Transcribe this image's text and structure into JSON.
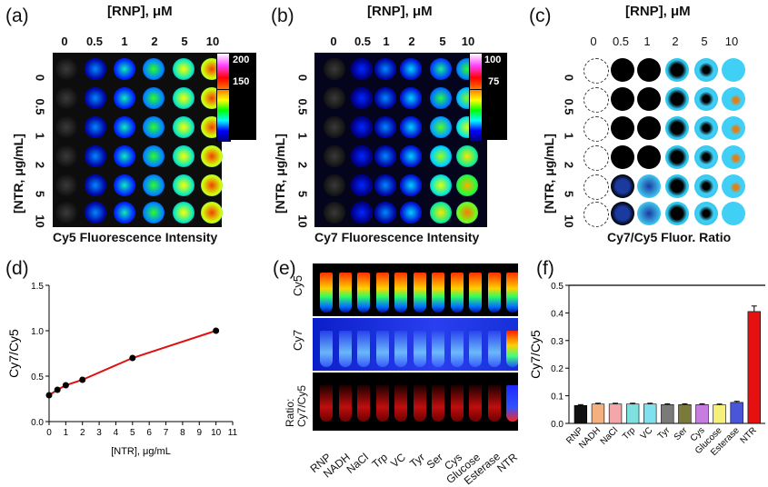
{
  "panels": {
    "a": {
      "label": "(a)",
      "col_header": "[RNP], μM",
      "cols": [
        "0",
        "0.5",
        "1",
        "2",
        "5",
        "10"
      ],
      "row_axis": "[NTR, μg/mL]",
      "rows": [
        "0",
        "0.5",
        "1",
        "2",
        "5",
        "10"
      ],
      "caption": "Cy5 Fluorescence Intensity",
      "cbar_max": "200",
      "cbar_mid": "150"
    },
    "b": {
      "label": "(b)",
      "col_header": "[RNP], μM",
      "cols": [
        "0",
        "0.5",
        "1",
        "2",
        "5",
        "10"
      ],
      "row_axis": "[NTR, μg/mL]",
      "rows": [
        "0",
        "0.5",
        "1",
        "2",
        "5",
        "10"
      ],
      "caption": "Cy7 Fluorescence Intensity",
      "cbar_max": "100",
      "cbar_mid": "75"
    },
    "c": {
      "label": "(c)",
      "col_header": "[RNP], μM",
      "cols": [
        "0",
        "0.5",
        "1",
        "2",
        "5",
        "10"
      ],
      "row_axis": "[NTR, μg/mL]",
      "rows": [
        "0",
        "0.5",
        "1",
        "2",
        "5",
        "10"
      ],
      "caption": "Cy7/Cy5 Fluor. Ratio"
    },
    "d": {
      "label": "(d)"
    },
    "e": {
      "label": "(e)",
      "row_labels": [
        "Cy5",
        "Cy7",
        "Ratio:\nCy7/Cy5"
      ],
      "tubes": [
        "RNP",
        "NADH",
        "NaCl",
        "Trp",
        "VC",
        "Tyr",
        "Ser",
        "Cys",
        "Glucose",
        "Esterase",
        "NTR"
      ]
    },
    "f": {
      "label": "(f)"
    }
  },
  "chart_data": [
    {
      "panel": "d",
      "type": "line",
      "xlabel": "[NTR], μg/mL",
      "ylabel": "Cy7/Cy5",
      "xlim": [
        0,
        11
      ],
      "ylim": [
        0,
        1.5
      ],
      "xticks": [
        "0",
        "1",
        "2",
        "3",
        "4",
        "5",
        "6",
        "7",
        "8",
        "9",
        "10",
        "11"
      ],
      "yticks": [
        "0.0",
        "0.5",
        "1.0",
        "1.5"
      ],
      "x": [
        0,
        0.5,
        1,
        2,
        5,
        10
      ],
      "y": [
        0.29,
        0.35,
        0.4,
        0.46,
        0.7,
        1.0
      ],
      "line_color": "#e01010",
      "marker_color": "#000000"
    },
    {
      "panel": "f",
      "type": "bar",
      "ylabel": "Cy7/Cy5",
      "ylim": [
        0,
        0.5
      ],
      "yticks": [
        "0.0",
        "0.1",
        "0.2",
        "0.3",
        "0.4",
        "0.5"
      ],
      "categories": [
        "RNP",
        "NADH",
        "NaCl",
        "Trp",
        "VC",
        "Tyr",
        "Ser",
        "Cys",
        "Glucose",
        "Esterase",
        "NTR"
      ],
      "values": [
        0.065,
        0.07,
        0.07,
        0.07,
        0.07,
        0.068,
        0.068,
        0.068,
        0.067,
        0.076,
        0.405
      ],
      "errors": [
        0.003,
        0.003,
        0.003,
        0.003,
        0.003,
        0.003,
        0.003,
        0.003,
        0.003,
        0.004,
        0.02
      ],
      "colors": [
        "#111111",
        "#f5b080",
        "#f4a6a8",
        "#7fe0e0",
        "#7fe0f0",
        "#7a7a7a",
        "#7a7a3a",
        "#c77ce0",
        "#f5f07a",
        "#4a56d8",
        "#e61010"
      ]
    }
  ]
}
